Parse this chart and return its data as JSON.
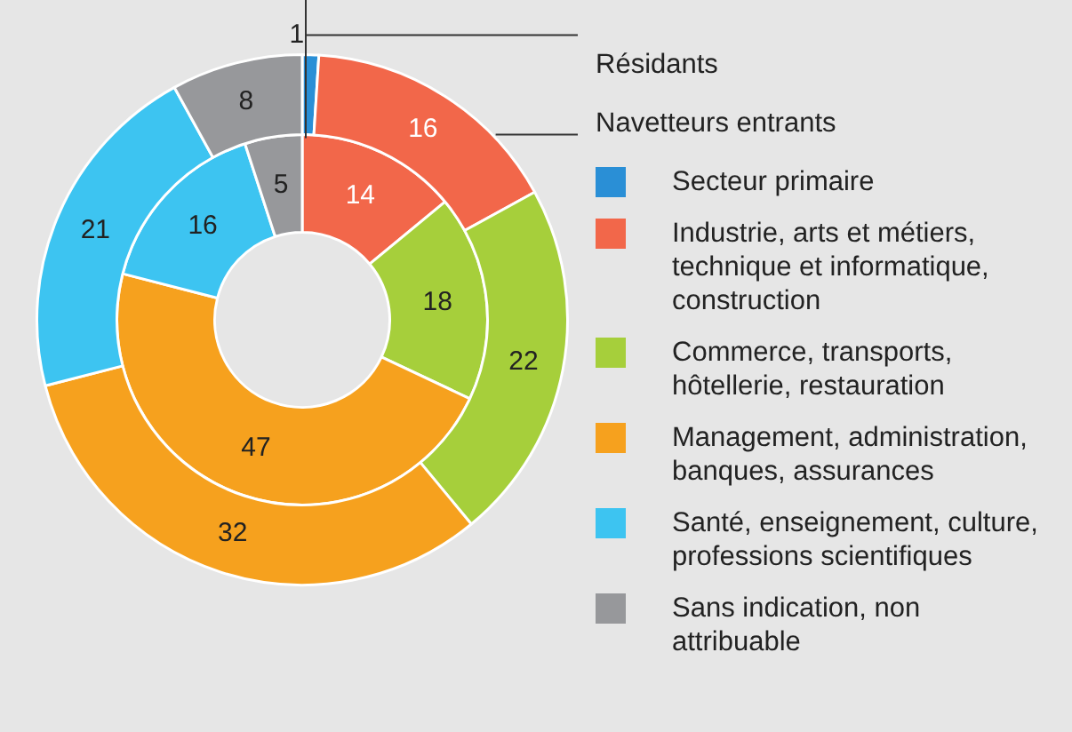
{
  "chart_data": {
    "type": "donut",
    "categories": [
      "Secteur primaire",
      "Industrie, arts et métiers, technique et informatique, construction",
      "Commerce, transports, hôtellerie, restauration",
      "Management, administration, banques, assurances",
      "Santé, enseignement, culture, professions scientifiques",
      "Sans indication, non attribuable"
    ],
    "colors": [
      "#2a8fd6",
      "#f2674a",
      "#a6cf3b",
      "#f6a11e",
      "#3dc4f1",
      "#97989b"
    ],
    "series": [
      {
        "name": "Résidants",
        "values": [
          1,
          16,
          22,
          32,
          21,
          8
        ]
      },
      {
        "name": "Navetteurs entrants",
        "values": [
          null,
          14,
          18,
          47,
          16,
          5
        ]
      }
    ],
    "data_labels": true,
    "legend": "right"
  }
}
